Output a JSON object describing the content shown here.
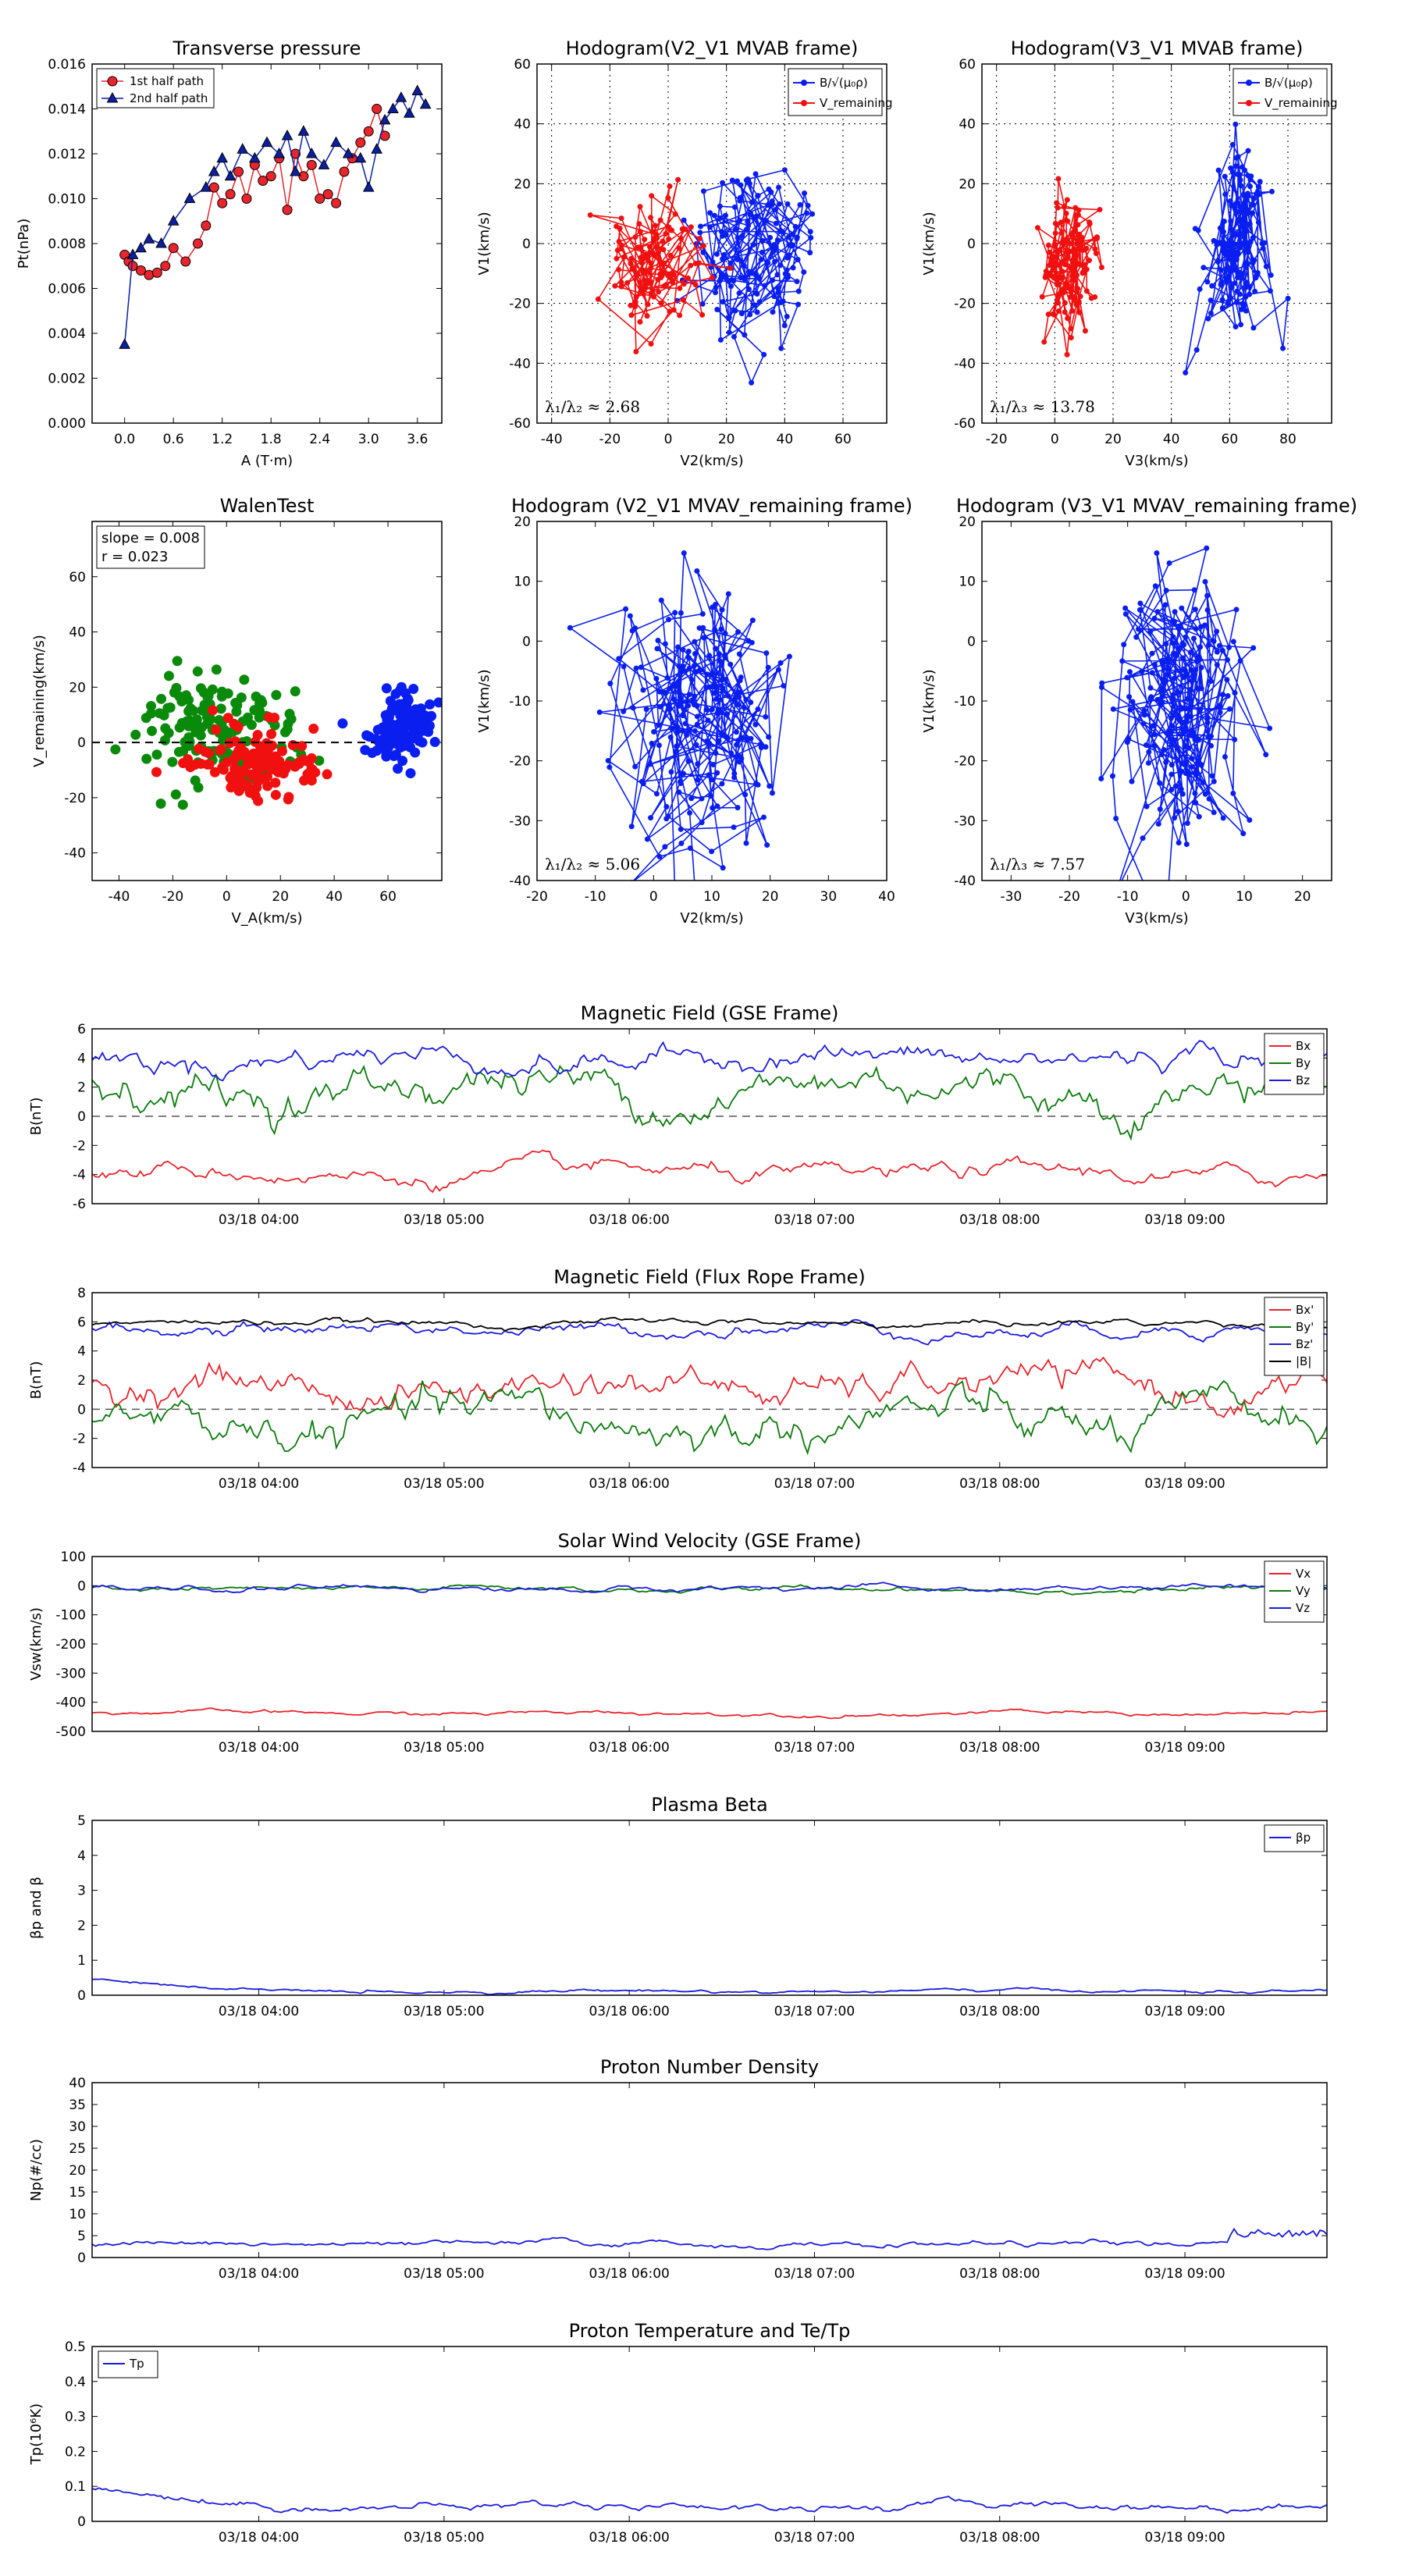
{
  "chart_data": [
    {
      "id": "pt",
      "type": "line",
      "title": "Transverse pressure",
      "xlabel": "A (T·m)",
      "ylabel": "Pt(nPa)",
      "xlim": [
        -0.4,
        3.9
      ],
      "ylim": [
        0,
        0.016
      ],
      "xticks": [
        0.0,
        0.6,
        1.2,
        1.8,
        2.4,
        3.0,
        3.6
      ],
      "xtick_labels": [
        "0.0",
        "0.6",
        "1.2",
        "1.8",
        "2.4",
        "3.0",
        "3.6"
      ],
      "yticks": [
        0,
        0.002,
        0.004,
        0.006,
        0.008,
        0.01,
        0.012,
        0.014,
        0.016
      ],
      "ytick_labels": [
        "0.000",
        "0.002",
        "0.004",
        "0.006",
        "0.008",
        "0.010",
        "0.012",
        "0.014",
        "0.016"
      ],
      "grid": false,
      "legend_position": "top-left",
      "series": [
        {
          "name": "1st half path",
          "color": "#e8242c",
          "marker": "circle",
          "x": [
            0.0,
            0.05,
            0.1,
            0.2,
            0.3,
            0.4,
            0.5,
            0.6,
            0.75,
            0.9,
            1.0,
            1.1,
            1.2,
            1.3,
            1.4,
            1.5,
            1.6,
            1.7,
            1.8,
            1.9,
            2.0,
            2.1,
            2.2,
            2.3,
            2.4,
            2.5,
            2.6,
            2.7,
            2.8,
            2.9,
            3.0,
            3.1,
            3.2
          ],
          "y": [
            0.0075,
            0.0072,
            0.007,
            0.0068,
            0.0066,
            0.0067,
            0.007,
            0.0078,
            0.0072,
            0.008,
            0.0088,
            0.0105,
            0.0098,
            0.0102,
            0.0112,
            0.01,
            0.0115,
            0.0108,
            0.011,
            0.0118,
            0.0095,
            0.012,
            0.011,
            0.0115,
            0.01,
            0.0102,
            0.0098,
            0.0112,
            0.0118,
            0.0125,
            0.013,
            0.014,
            0.0128
          ]
        },
        {
          "name": "2nd half path",
          "color": "#0b1fa0",
          "marker": "triangle",
          "x": [
            0.0,
            0.1,
            0.2,
            0.3,
            0.45,
            0.6,
            0.8,
            1.0,
            1.1,
            1.2,
            1.3,
            1.45,
            1.6,
            1.75,
            1.9,
            2.0,
            2.1,
            2.2,
            2.3,
            2.45,
            2.6,
            2.75,
            2.9,
            3.0,
            3.1,
            3.2,
            3.3,
            3.4,
            3.5,
            3.6,
            3.7
          ],
          "y": [
            0.0035,
            0.0075,
            0.0078,
            0.0082,
            0.008,
            0.009,
            0.01,
            0.0105,
            0.0112,
            0.0118,
            0.011,
            0.0122,
            0.0118,
            0.0125,
            0.012,
            0.0128,
            0.0112,
            0.013,
            0.012,
            0.0115,
            0.0125,
            0.012,
            0.0118,
            0.0105,
            0.0122,
            0.0135,
            0.014,
            0.0145,
            0.0138,
            0.0148,
            0.0142
          ]
        }
      ]
    },
    {
      "id": "h1",
      "type": "scatter",
      "title": "Hodogram(V2_V1 MVAB frame)",
      "xlabel": "V2(km/s)",
      "ylabel": "V1(km/s)",
      "xlim": [
        -45,
        75
      ],
      "ylim": [
        -60,
        60
      ],
      "xticks": [
        -40,
        -20,
        0,
        20,
        40,
        60
      ],
      "yticks": [
        -60,
        -40,
        -20,
        0,
        20,
        40,
        60
      ],
      "grid": true,
      "legend_position": "top-right",
      "annotation": "λ₁/λ₂ ≈ 2.68",
      "series": [
        {
          "name": "B/√(μ₀ρ)",
          "color": "#0a1ef0",
          "cx": 30,
          "cy": -5,
          "sx": 11,
          "sy": 16,
          "n": 160
        },
        {
          "name": "V_remaining",
          "color": "#f01010",
          "cx": -5,
          "cy": -5,
          "sx": 8,
          "sy": 11,
          "n": 130
        }
      ]
    },
    {
      "id": "h2",
      "type": "scatter",
      "title": "Hodogram(V3_V1 MVAB frame)",
      "xlabel": "V3(km/s)",
      "ylabel": "V1(km/s)",
      "xlim": [
        -25,
        95
      ],
      "ylim": [
        -60,
        60
      ],
      "xticks": [
        -20,
        0,
        20,
        40,
        60,
        80
      ],
      "yticks": [
        -60,
        -40,
        -20,
        0,
        20,
        40,
        60
      ],
      "grid": true,
      "legend_position": "top-right",
      "annotation": "λ₁/λ₃ ≈ 13.78",
      "series": [
        {
          "name": "B/√(μ₀ρ)",
          "color": "#0a1ef0",
          "cx": 63,
          "cy": -5,
          "sx": 6,
          "sy": 16,
          "n": 160
        },
        {
          "name": "V_remaining",
          "color": "#f01010",
          "cx": 5,
          "cy": -5,
          "sx": 5,
          "sy": 11,
          "n": 130
        }
      ]
    },
    {
      "id": "walen",
      "type": "scatter",
      "title": "WalenTest",
      "xlabel": "V_A(km/s)",
      "ylabel": "V_remaining(km/s)",
      "xlim": [
        -50,
        80
      ],
      "ylim": [
        -50,
        80
      ],
      "xticks": [
        -40,
        -20,
        0,
        20,
        40,
        60
      ],
      "yticks": [
        -40,
        -20,
        0,
        20,
        40,
        60
      ],
      "grid": false,
      "slope_label": "slope = 0.008",
      "r_label": "r = 0.023",
      "series": [
        {
          "name": "green",
          "color": "#0a8a0a",
          "cx": 0,
          "cy": 5,
          "sx": 14,
          "sy": 10,
          "n": 140
        },
        {
          "name": "red",
          "color": "#f01010",
          "cx": 10,
          "cy": -8,
          "sx": 12,
          "sy": 6,
          "n": 130
        },
        {
          "name": "blue",
          "color": "#0a1ef0",
          "cx": 65,
          "cy": 5,
          "sx": 6,
          "sy": 6,
          "n": 140
        }
      ]
    },
    {
      "id": "h3",
      "type": "scatter",
      "title": "Hodogram (V2_V1 MVAV_remaining frame)",
      "xlabel": "V2(km/s)",
      "ylabel": "V1(km/s)",
      "xlim": [
        -20,
        40
      ],
      "ylim": [
        -40,
        20
      ],
      "xticks": [
        -20,
        -10,
        0,
        10,
        20,
        30,
        40
      ],
      "yticks": [
        -40,
        -30,
        -20,
        -10,
        0,
        10,
        20
      ],
      "grid": false,
      "annotation": "λ₁/λ₂ ≈ 5.06",
      "series": [
        {
          "name": "blue",
          "color": "#0a1ef0",
          "cx": 7,
          "cy": -13,
          "sx": 7,
          "sy": 12,
          "n": 220
        }
      ]
    },
    {
      "id": "h4",
      "type": "scatter",
      "title": "Hodogram (V3_V1 MVAV_remaining frame)",
      "xlabel": "V3(km/s)",
      "ylabel": "V1(km/s)",
      "xlim": [
        -35,
        25
      ],
      "ylim": [
        -40,
        20
      ],
      "xticks": [
        -30,
        -20,
        -10,
        0,
        10,
        20
      ],
      "yticks": [
        -40,
        -30,
        -20,
        -10,
        0,
        10,
        20
      ],
      "grid": false,
      "annotation": "λ₁/λ₃ ≈ 7.57",
      "series": [
        {
          "name": "blue",
          "color": "#0a1ef0",
          "cx": -1,
          "cy": -12,
          "sx": 6,
          "sy": 12,
          "n": 220
        }
      ]
    },
    {
      "id": "bgse",
      "type": "line",
      "title": "Magnetic Field (GSE Frame)",
      "ylabel": "B(nT)",
      "ylim": [
        -6,
        6
      ],
      "yticks": [
        -6,
        -4,
        -2,
        0,
        2,
        4,
        6
      ],
      "zero_line": true,
      "legend_position": "top-right",
      "series": [
        {
          "name": "Bx",
          "color": "#e8242c",
          "base": -4.0,
          "amp": 0.5
        },
        {
          "name": "By",
          "color": "#0a7a0a",
          "base": 2.0,
          "amp": 1.2
        },
        {
          "name": "Bz",
          "color": "#1a1ae0",
          "base": 4.0,
          "amp": 0.7
        }
      ]
    },
    {
      "id": "bfr",
      "type": "line",
      "title": "Magnetic Field (Flux Rope Frame)",
      "ylabel": "B(nT)",
      "ylim": [
        -4,
        8
      ],
      "yticks": [
        -4,
        -2,
        0,
        2,
        4,
        6,
        8
      ],
      "zero_line": true,
      "legend_position": "top-right",
      "series": [
        {
          "name": "Bx'",
          "color": "#e8242c",
          "base": 1.5,
          "amp": 1.0
        },
        {
          "name": "By'",
          "color": "#0a7a0a",
          "base": -1.0,
          "amp": 1.3
        },
        {
          "name": "Bz'",
          "color": "#1a1ae0",
          "base": 5.5,
          "amp": 0.4
        },
        {
          "name": "|B|",
          "color": "#000000",
          "base": 5.9,
          "amp": 0.2
        }
      ]
    },
    {
      "id": "vsw",
      "type": "line",
      "title": "Solar Wind Velocity (GSE Frame)",
      "ylabel": "Vsw(km/s)",
      "ylim": [
        -500,
        100
      ],
      "yticks": [
        -500,
        -400,
        -300,
        -200,
        -100,
        0,
        100
      ],
      "legend_position": "top-right",
      "series": [
        {
          "name": "Vx",
          "color": "#e8242c",
          "base": -438,
          "amp": 6
        },
        {
          "name": "Vy",
          "color": "#0a7a0a",
          "base": -12,
          "amp": 8
        },
        {
          "name": "Vz",
          "color": "#1a1ae0",
          "base": -10,
          "amp": 8
        }
      ]
    },
    {
      "id": "beta",
      "type": "line",
      "title": "Plasma Beta",
      "ylabel": "βp and β",
      "ylim": [
        0,
        5
      ],
      "yticks": [
        0,
        1,
        2,
        3,
        4,
        5
      ],
      "legend_position": "top-right",
      "series": [
        {
          "name": "βp",
          "color": "#1a1ae0",
          "base": 0.12,
          "amp": 0.04
        }
      ]
    },
    {
      "id": "np",
      "type": "line",
      "title": "Proton Number Density",
      "ylabel": "Np(#/cc)",
      "ylim": [
        0,
        40
      ],
      "yticks": [
        0,
        5,
        10,
        15,
        20,
        25,
        30,
        35,
        40
      ],
      "series": [
        {
          "name": "Np",
          "color": "#1a1ae0",
          "base": 3.0,
          "amp": 0.6
        }
      ]
    },
    {
      "id": "tp",
      "type": "line",
      "title": "Proton Temperature and Te/Tp",
      "ylabel": "Tp(10⁶K)",
      "ylim": [
        0,
        0.5
      ],
      "yticks": [
        0.0,
        0.1,
        0.2,
        0.3,
        0.4,
        0.5
      ],
      "legend_position": "top-left",
      "series": [
        {
          "name": "Tp",
          "color": "#1a1ae0",
          "base": 0.045,
          "amp": 0.01
        }
      ]
    }
  ],
  "time_axis": {
    "tick_labels": [
      "03/18 04:00",
      "03/18 05:00",
      "03/18 06:00",
      "03/18 07:00",
      "03/18 08:00",
      "03/18 09:00"
    ]
  }
}
